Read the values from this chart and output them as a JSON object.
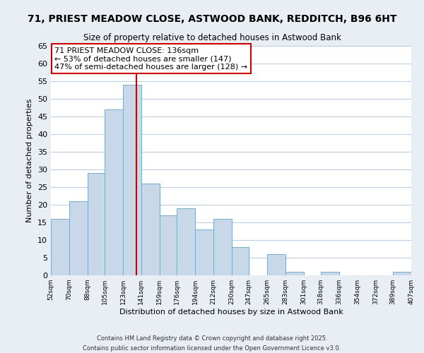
{
  "title": "71, PRIEST MEADOW CLOSE, ASTWOOD BANK, REDDITCH, B96 6HT",
  "subtitle": "Size of property relative to detached houses in Astwood Bank",
  "xlabel": "Distribution of detached houses by size in Astwood Bank",
  "ylabel": "Number of detached properties",
  "bar_color": "#c8d8e8",
  "bar_edge_color": "#7aaac8",
  "vline_color": "#cc0000",
  "vline_x": 136,
  "annotation_line1": "71 PRIEST MEADOW CLOSE: 136sqm",
  "annotation_line2": "← 53% of detached houses are smaller (147)",
  "annotation_line3": "47% of semi-detached houses are larger (128) →",
  "bin_edges": [
    52,
    70,
    88,
    105,
    123,
    141,
    159,
    176,
    194,
    212,
    230,
    247,
    265,
    283,
    301,
    318,
    336,
    354,
    372,
    389,
    407
  ],
  "bin_labels": [
    "52sqm",
    "70sqm",
    "88sqm",
    "105sqm",
    "123sqm",
    "141sqm",
    "159sqm",
    "176sqm",
    "194sqm",
    "212sqm",
    "230sqm",
    "247sqm",
    "265sqm",
    "283sqm",
    "301sqm",
    "318sqm",
    "336sqm",
    "354sqm",
    "372sqm",
    "389sqm",
    "407sqm"
  ],
  "counts": [
    16,
    21,
    29,
    47,
    54,
    26,
    17,
    19,
    13,
    16,
    8,
    0,
    6,
    1,
    0,
    1,
    0,
    0,
    0,
    1
  ],
  "ylim": [
    0,
    65
  ],
  "yticks": [
    0,
    5,
    10,
    15,
    20,
    25,
    30,
    35,
    40,
    45,
    50,
    55,
    60,
    65
  ],
  "footer_text": "Contains HM Land Registry data © Crown copyright and database right 2025.\nContains public sector information licensed under the Open Government Licence v3.0.",
  "bg_color": "#e8eef4",
  "plot_bg_color": "#ffffff",
  "grid_color": "#c0cce0",
  "title_fontsize": 10,
  "subtitle_fontsize": 8.5
}
